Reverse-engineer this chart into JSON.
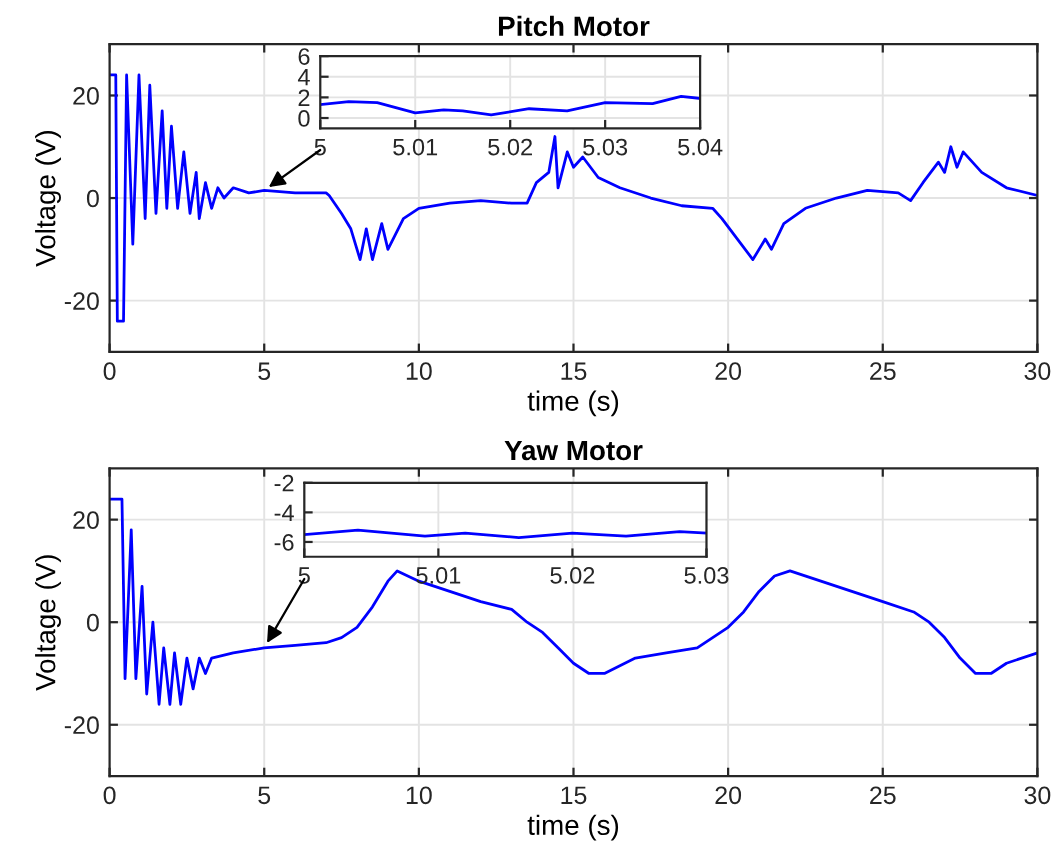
{
  "chart_data": [
    {
      "type": "line",
      "title": "Pitch Motor",
      "xlabel": "time (s)",
      "ylabel": "Voltage (V)",
      "xlim": [
        0,
        30
      ],
      "ylim": [
        -30,
        30
      ],
      "xticks": [
        0,
        5,
        10,
        15,
        20,
        25,
        30
      ],
      "yticks": [
        -20,
        0,
        20
      ],
      "grid": true,
      "series": [
        {
          "color": "#0000ff",
          "x": [
            0,
            0.2,
            0.25,
            0.45,
            0.55,
            0.75,
            0.95,
            1.15,
            1.3,
            1.5,
            1.7,
            1.85,
            2.0,
            2.2,
            2.4,
            2.6,
            2.8,
            2.9,
            3.1,
            3.3,
            3.5,
            3.7,
            4,
            4.5,
            5,
            6,
            7,
            7.1,
            7.5,
            7.8,
            8.1,
            8.3,
            8.5,
            8.8,
            9.0,
            9.5,
            10,
            11,
            12,
            13,
            13.5,
            13.8,
            14.2,
            14.4,
            14.5,
            14.8,
            15,
            15.3,
            15.8,
            16.5,
            17.5,
            18.5,
            19.5,
            19.8,
            20.3,
            20.8,
            21.2,
            21.4,
            21.8,
            22.5,
            23.5,
            24.5,
            25.5,
            25.9,
            26.3,
            26.8,
            27,
            27.2,
            27.4,
            27.6,
            28.2,
            29,
            30
          ],
          "values": [
            24,
            24,
            -24,
            -24,
            24,
            -9,
            24,
            -4,
            22,
            -3,
            17,
            -2,
            14,
            -2,
            9,
            -3,
            5,
            -4,
            3,
            -2,
            2,
            0,
            2,
            1,
            1.5,
            1,
            1,
            0.5,
            -3,
            -6,
            -12,
            -6,
            -12,
            -5,
            -10,
            -4,
            -2,
            -1,
            -0.5,
            -1,
            -1,
            3,
            5,
            12,
            2,
            9,
            6,
            8,
            4,
            2,
            0,
            -1.5,
            -2,
            -4,
            -8,
            -12,
            -8,
            -10,
            -5,
            -2,
            0,
            1.5,
            1,
            -0.5,
            3,
            7,
            5,
            10,
            6,
            9,
            5,
            2,
            0.5
          ]
        }
      ]
    },
    {
      "type": "line",
      "xlim": [
        5,
        5.04
      ],
      "ylim": [
        -1,
        6
      ],
      "xticks": [
        5,
        5.01,
        5.02,
        5.03,
        5.04
      ],
      "yticks": [
        0,
        2,
        4,
        6
      ],
      "grid": true,
      "series": [
        {
          "color": "#0000ff",
          "x": [
            5,
            5.003,
            5.006,
            5.01,
            5.013,
            5.015,
            5.018,
            5.022,
            5.026,
            5.03,
            5.035,
            5.038,
            5.04
          ],
          "values": [
            1.3,
            1.6,
            1.5,
            0.5,
            0.8,
            0.7,
            0.3,
            0.9,
            0.7,
            1.5,
            1.4,
            2.1,
            1.9
          ]
        }
      ]
    },
    {
      "type": "line",
      "title": "Yaw Motor",
      "xlabel": "time (s)",
      "ylabel": "Voltage (V)",
      "xlim": [
        0,
        30
      ],
      "ylim": [
        -30,
        30
      ],
      "xticks": [
        0,
        5,
        10,
        15,
        20,
        25,
        30
      ],
      "yticks": [
        -20,
        0,
        20
      ],
      "grid": true,
      "series": [
        {
          "color": "#0000ff",
          "x": [
            0,
            0.4,
            0.5,
            0.7,
            0.85,
            1.05,
            1.2,
            1.4,
            1.6,
            1.75,
            1.95,
            2.1,
            2.3,
            2.5,
            2.7,
            2.9,
            3.1,
            3.3,
            4,
            5,
            6,
            7,
            7.5,
            8,
            8.5,
            9,
            9.3,
            10,
            11,
            12,
            13,
            13.5,
            14,
            14.5,
            15,
            15.5,
            16,
            17,
            18,
            19,
            19.5,
            20,
            20.5,
            21,
            21.5,
            22,
            23,
            24,
            25,
            26,
            26.5,
            27,
            27.5,
            28,
            28.5,
            29,
            30
          ],
          "values": [
            24,
            24,
            -11,
            18,
            -11,
            7,
            -14,
            0,
            -16,
            -5,
            -16,
            -6,
            -16,
            -7,
            -13,
            -7,
            -10,
            -7,
            -6,
            -5,
            -4.5,
            -4,
            -3,
            -1,
            3,
            8,
            10,
            8,
            6,
            4,
            2.5,
            0,
            -2,
            -5,
            -8,
            -10,
            -10,
            -7,
            -6,
            -5,
            -3,
            -1,
            2,
            6,
            9,
            10,
            8,
            6,
            4,
            2,
            0,
            -3,
            -7,
            -10,
            -10,
            -8,
            -6
          ]
        }
      ]
    },
    {
      "type": "line",
      "xlim": [
        5,
        5.03
      ],
      "ylim": [
        -7,
        -2
      ],
      "xticks": [
        5,
        5.01,
        5.02,
        5.03
      ],
      "yticks": [
        -6,
        -4,
        -2
      ],
      "grid": true,
      "series": [
        {
          "color": "#0000ff",
          "x": [
            5,
            5.004,
            5.009,
            5.012,
            5.016,
            5.02,
            5.024,
            5.028,
            5.03
          ],
          "values": [
            -5.5,
            -5.2,
            -5.6,
            -5.4,
            -5.7,
            -5.4,
            -5.6,
            -5.3,
            -5.4
          ]
        }
      ]
    }
  ]
}
